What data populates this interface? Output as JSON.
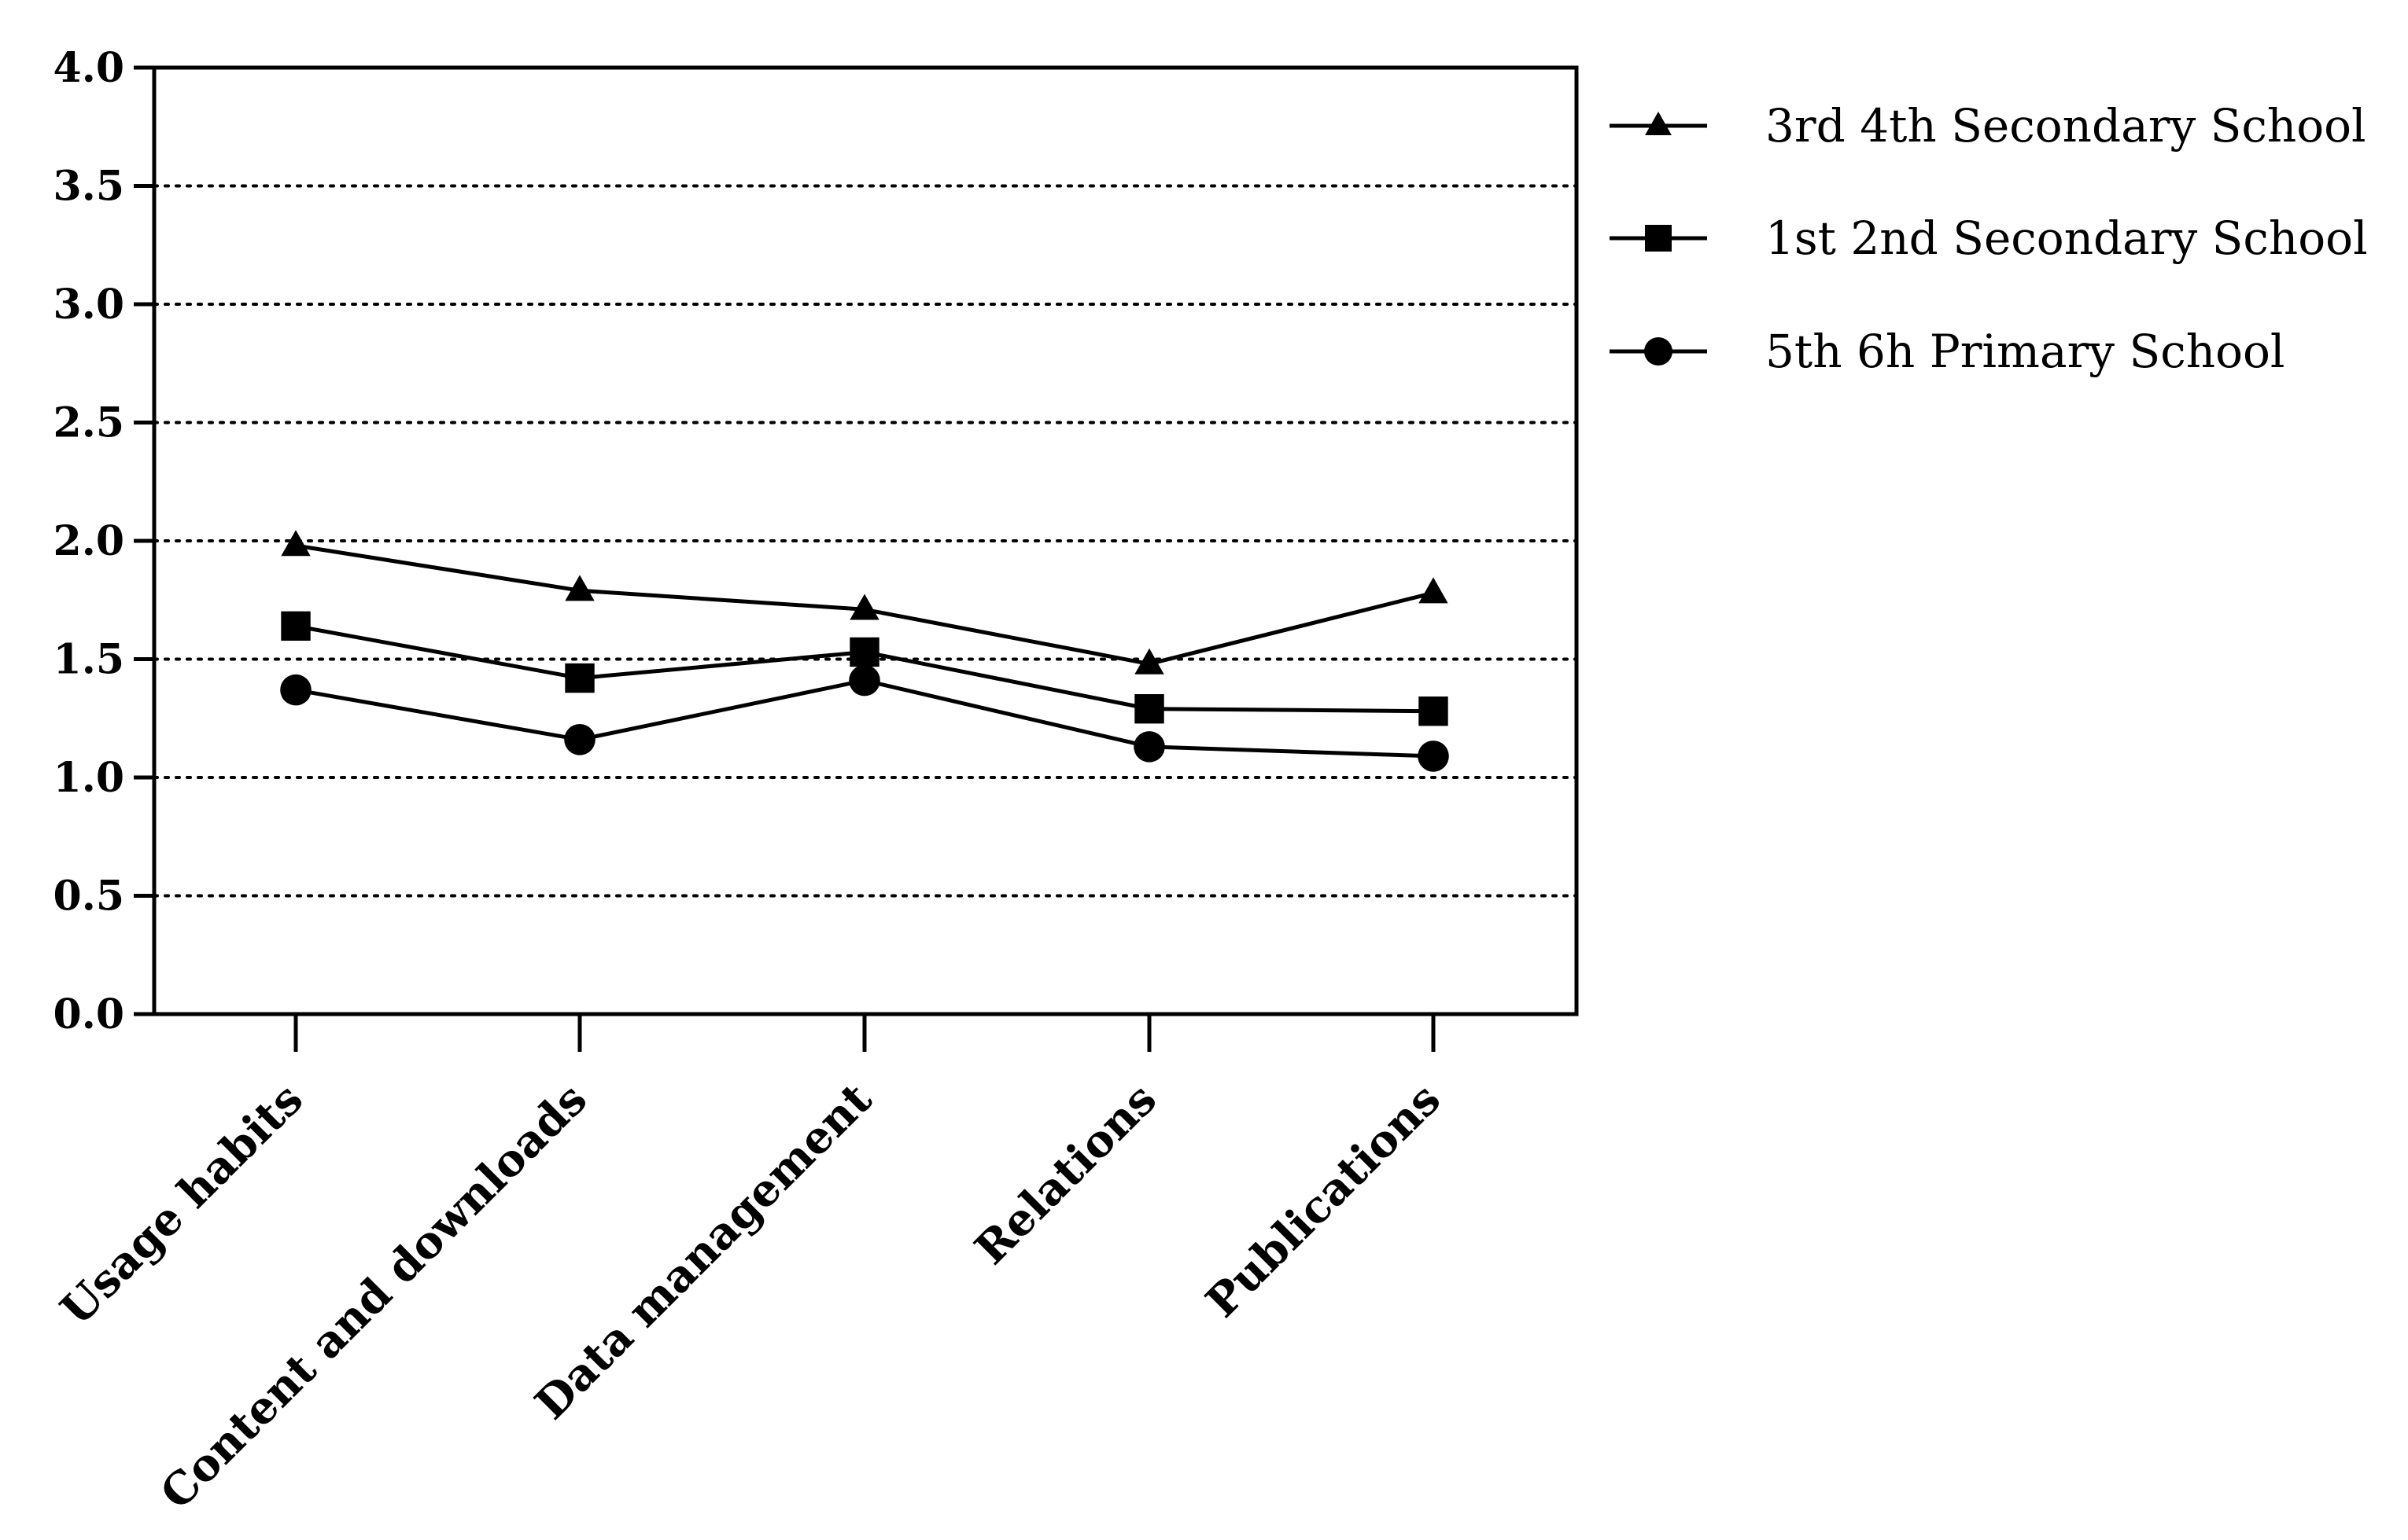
{
  "chart_data": {
    "type": "line",
    "title": "",
    "xlabel": "",
    "ylabel": "",
    "categories": [
      "Usage habits",
      "Content and downloads",
      "Data management",
      "Relations",
      "Publications"
    ],
    "ylim": [
      0,
      4
    ],
    "yticks": [
      "0.0",
      "0.5",
      "1.0",
      "1.5",
      "2.0",
      "2.5",
      "3.0",
      "3.5",
      "4.0"
    ],
    "grid": "horizontal dotted",
    "legend_position": "right",
    "series": [
      {
        "name": "3rd 4th Secondary School",
        "marker": "triangle",
        "color": "#000000",
        "values": [
          1.98,
          1.79,
          1.71,
          1.48,
          1.78
        ]
      },
      {
        "name": "1st 2nd Secondary School",
        "marker": "square",
        "color": "#000000",
        "values": [
          1.64,
          1.42,
          1.53,
          1.29,
          1.28
        ]
      },
      {
        "name": "5th 6h Primary School",
        "marker": "circle",
        "color": "#000000",
        "values": [
          1.37,
          1.16,
          1.41,
          1.13,
          1.09
        ]
      }
    ]
  }
}
